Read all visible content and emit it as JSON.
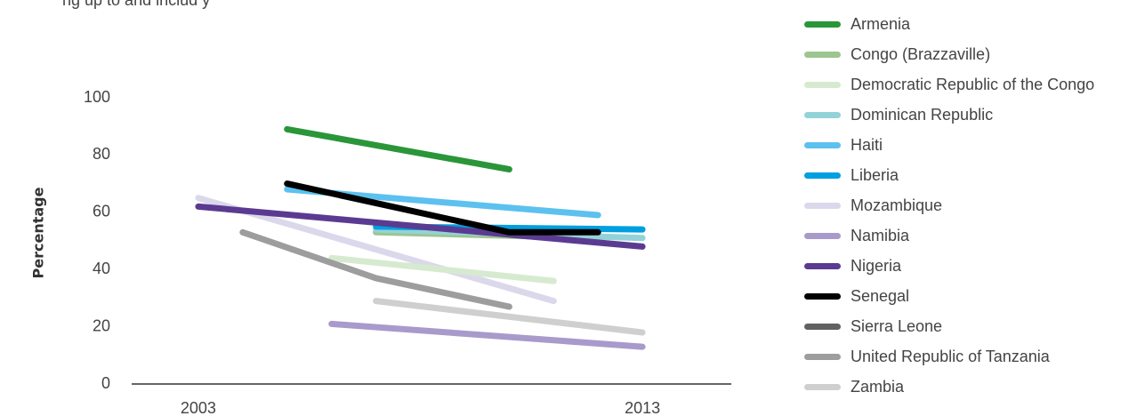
{
  "partial_text": "ng up to and includ    y",
  "chart_data": {
    "type": "line",
    "title": "",
    "xlabel": "",
    "ylabel": "Percentage",
    "x_ticks": [
      "2003",
      "2013"
    ],
    "y_ticks": [
      "0",
      "20",
      "40",
      "60",
      "80",
      "100"
    ],
    "ylim": [
      0,
      100
    ],
    "xlim": [
      2001.5,
      2015
    ],
    "grid": false,
    "legend_position": "right",
    "series": [
      {
        "name": "Armenia",
        "color": "#2a9639",
        "x": [
          2005,
          2010
        ],
        "y": [
          89,
          75
        ]
      },
      {
        "name": "Congo (Brazzaville)",
        "color": "#9dc58f",
        "x": [
          2007,
          2012
        ],
        "y": [
          53,
          51
        ]
      },
      {
        "name": "Democratic Republic of the Congo",
        "color": "#d6ead0",
        "x": [
          2006,
          2011
        ],
        "y": [
          44,
          36
        ]
      },
      {
        "name": "Dominican Republic",
        "color": "#93d3d8",
        "x": [
          2007,
          2013
        ],
        "y": [
          54,
          51
        ]
      },
      {
        "name": "Haiti",
        "color": "#5cc1ee",
        "x": [
          2005,
          2012
        ],
        "y": [
          68,
          59
        ]
      },
      {
        "name": "Liberia",
        "color": "#009fe0",
        "x": [
          2007,
          2013
        ],
        "y": [
          55,
          54
        ]
      },
      {
        "name": "Mozambique",
        "color": "#dbd8ec",
        "x": [
          2003,
          2011
        ],
        "y": [
          65,
          29
        ]
      },
      {
        "name": "Namibia",
        "color": "#a89acb",
        "x": [
          2006,
          2013
        ],
        "y": [
          21,
          13
        ]
      },
      {
        "name": "Nigeria",
        "color": "#5b3b91",
        "x": [
          2003,
          2013
        ],
        "y": [
          62,
          48
        ]
      },
      {
        "name": "Senegal",
        "color": "#000000",
        "x": [
          2005,
          2010,
          2012
        ],
        "y": [
          70,
          53,
          53
        ]
      },
      {
        "name": "Sierra Leone",
        "color": "#616161",
        "x": [],
        "y": []
      },
      {
        "name": "United Republic of Tanzania",
        "color": "#9d9d9d",
        "x": [
          2004,
          2007,
          2010
        ],
        "y": [
          53,
          37,
          27
        ]
      },
      {
        "name": "Zambia",
        "color": "#cfcfcf",
        "x": [
          2007,
          2013
        ],
        "y": [
          29,
          18
        ]
      }
    ]
  }
}
